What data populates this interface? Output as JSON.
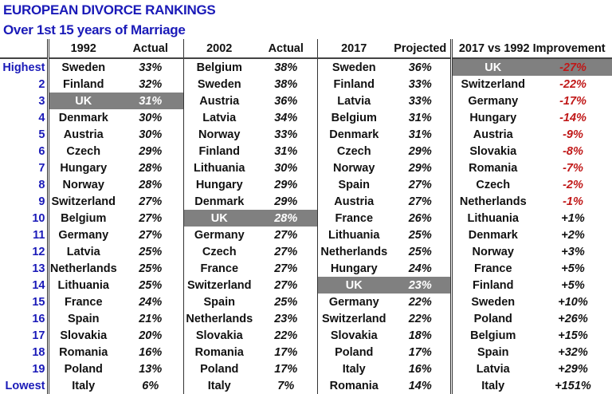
{
  "title": "EUROPEAN DIVORCE RANKINGS",
  "subtitle": "Over 1st 15 years of Marriage",
  "colors": {
    "title": "#1a1ab8",
    "highlight": "#808080",
    "negative": "#c01818"
  },
  "chart_data": {
    "type": "table",
    "title": "EUROPEAN DIVORCE RANKINGS",
    "subtitle": "Over 1st 15 years of Marriage",
    "headers": [
      "",
      "1992",
      "Actual",
      "2002",
      "Actual",
      "2017",
      "Projected",
      "2017 vs 1992 Improvement"
    ],
    "highlight_country": "UK",
    "ranks": [
      "Highest",
      "2",
      "3",
      "4",
      "5",
      "6",
      "7",
      "8",
      "9",
      "10",
      "11",
      "12",
      "13",
      "14",
      "15",
      "16",
      "17",
      "18",
      "19",
      "Lowest"
    ],
    "y1992": {
      "countries": [
        "Sweden",
        "Finland",
        "UK",
        "Denmark",
        "Austria",
        "Czech",
        "Hungary",
        "Norway",
        "Switzerland",
        "Belgium",
        "Germany",
        "Latvia",
        "Netherlands",
        "Lithuania",
        "France",
        "Spain",
        "Slovakia",
        "Romania",
        "Poland",
        "Italy"
      ],
      "values": [
        "33%",
        "32%",
        "31%",
        "30%",
        "30%",
        "29%",
        "28%",
        "28%",
        "27%",
        "27%",
        "27%",
        "25%",
        "25%",
        "25%",
        "24%",
        "21%",
        "20%",
        "16%",
        "13%",
        "6%"
      ]
    },
    "y2002": {
      "countries": [
        "Belgium",
        "Sweden",
        "Austria",
        "Latvia",
        "Norway",
        "Finland",
        "Lithuania",
        "Hungary",
        "Denmark",
        "UK",
        "Germany",
        "Czech",
        "France",
        "Switzerland",
        "Spain",
        "Netherlands",
        "Slovakia",
        "Romania",
        "Poland",
        "Italy"
      ],
      "values": [
        "38%",
        "38%",
        "36%",
        "34%",
        "33%",
        "31%",
        "30%",
        "29%",
        "29%",
        "28%",
        "27%",
        "27%",
        "27%",
        "27%",
        "25%",
        "23%",
        "22%",
        "17%",
        "17%",
        "7%"
      ]
    },
    "y2017": {
      "countries": [
        "Sweden",
        "Finland",
        "Latvia",
        "Belgium",
        "Denmark",
        "Czech",
        "Norway",
        "Spain",
        "Austria",
        "France",
        "Lithuania",
        "Netherlands",
        "Hungary",
        "UK",
        "Germany",
        "Switzerland",
        "Slovakia",
        "Poland",
        "Italy",
        "Romania"
      ],
      "values": [
        "36%",
        "33%",
        "33%",
        "31%",
        "31%",
        "29%",
        "29%",
        "27%",
        "27%",
        "26%",
        "25%",
        "25%",
        "24%",
        "23%",
        "22%",
        "22%",
        "18%",
        "17%",
        "16%",
        "14%"
      ]
    },
    "improvement": {
      "countries": [
        "UK",
        "Switzerland",
        "Germany",
        "Hungary",
        "Austria",
        "Slovakia",
        "Romania",
        "Czech",
        "Netherlands",
        "Lithuania",
        "Denmark",
        "Norway",
        "France",
        "Finland",
        "Sweden",
        "Poland",
        "Belgium",
        "Spain",
        "Latvia",
        "Italy"
      ],
      "values": [
        "-27%",
        "-22%",
        "-17%",
        "-14%",
        "-9%",
        "-8%",
        "-7%",
        "-2%",
        "-1%",
        "+1%",
        "+2%",
        "+3%",
        "+5%",
        "+5%",
        "+10%",
        "+26%",
        "+15%",
        "+32%",
        "+29%",
        "+151%"
      ]
    }
  }
}
